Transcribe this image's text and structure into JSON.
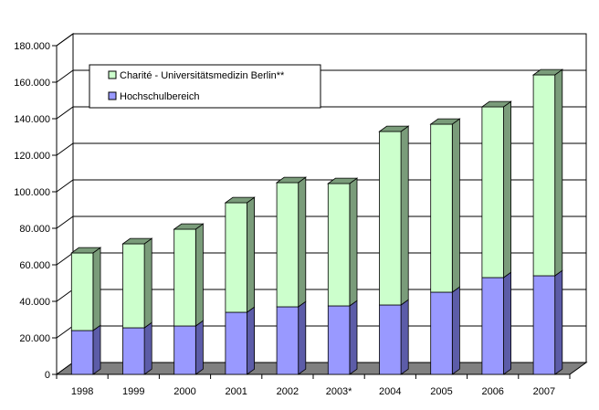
{
  "chart_data": {
    "type": "bar",
    "stacked": true,
    "three_d": true,
    "title": "",
    "xlabel": "",
    "ylabel": "",
    "ylim": [
      0,
      180000
    ],
    "y_ticks": [
      "0",
      "20.000",
      "40.000",
      "60.000",
      "80.000",
      "100.000",
      "120.000",
      "140.000",
      "160.000",
      "180.000"
    ],
    "y_tick_values": [
      0,
      20000,
      40000,
      60000,
      80000,
      100000,
      120000,
      140000,
      160000,
      180000
    ],
    "grid": true,
    "legend_position": "top-left",
    "categories": [
      "1998",
      "1999",
      "2000",
      "2001",
      "2002",
      "2003*",
      "2004",
      "2005",
      "2006",
      "2007"
    ],
    "series": [
      {
        "name": "Hochschulbereich",
        "color": "#9999ff",
        "side_color": "#5c5ca8",
        "values": [
          24000,
          25500,
          26500,
          34000,
          37000,
          37500,
          38000,
          45000,
          53000,
          54000
        ]
      },
      {
        "name": "Charité - Universitätsmedizin Berlin**",
        "color": "#ccffcc",
        "side_color": "#7a9c7a",
        "values": [
          42500,
          46000,
          53000,
          60000,
          68000,
          67000,
          95000,
          92000,
          93500,
          110000
        ]
      }
    ]
  }
}
